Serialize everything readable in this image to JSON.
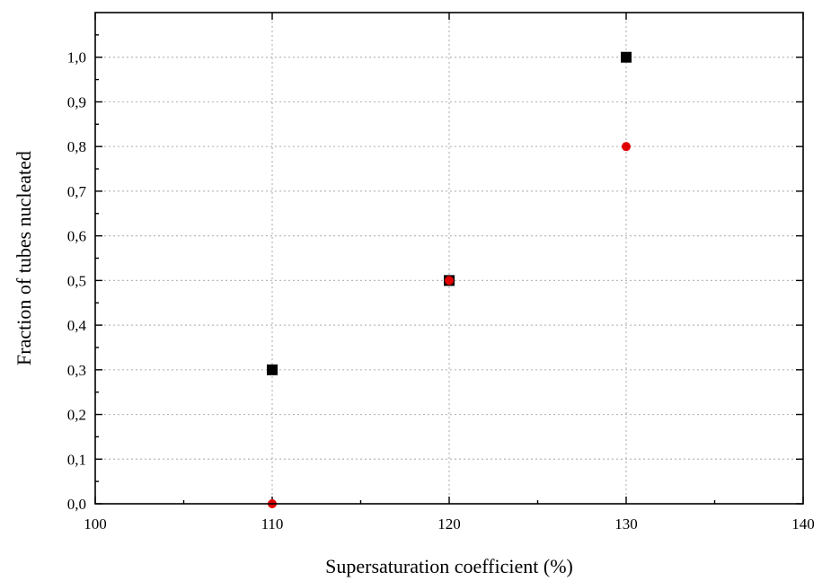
{
  "chart_data": {
    "type": "scatter",
    "xlabel": "Supersaturation coefficient (%)",
    "ylabel": "Fraction of tubes nucleated",
    "xlim": [
      100,
      140
    ],
    "ylim": [
      0,
      1.1
    ],
    "x_ticks": [
      100,
      110,
      120,
      130,
      140
    ],
    "x_tick_labels": [
      "100",
      "110",
      "120",
      "130",
      "140"
    ],
    "y_ticks": [
      0,
      0.1,
      0.2,
      0.3,
      0.4,
      0.5,
      0.6,
      0.7,
      0.8,
      0.9,
      1.0
    ],
    "y_tick_labels": [
      "0,0",
      "0,1",
      "0,2",
      "0,3",
      "0,4",
      "0,5",
      "0,6",
      "0,7",
      "0,8",
      "0,9",
      "1,0"
    ],
    "grid": true,
    "series": [
      {
        "marker": "square",
        "color": "#000000",
        "x": [
          110,
          120,
          130
        ],
        "y": [
          0.3,
          0.5,
          1.0
        ]
      },
      {
        "marker": "circle",
        "color": "#e00000",
        "x": [
          110,
          120,
          130
        ],
        "y": [
          0.0,
          0.5,
          0.8
        ]
      }
    ]
  }
}
